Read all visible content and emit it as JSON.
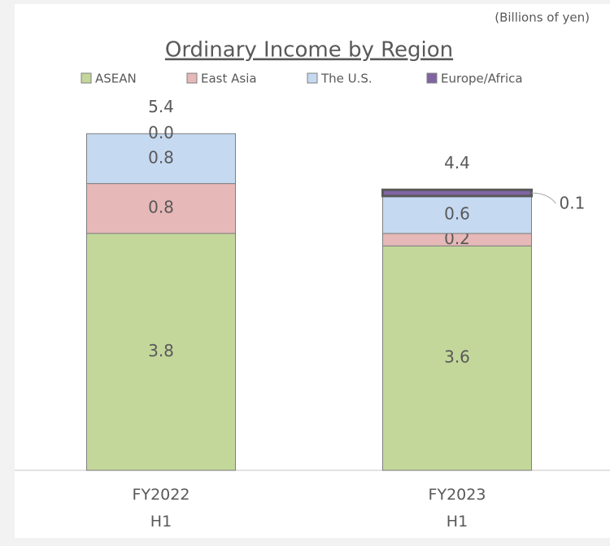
{
  "chart_data": {
    "type": "stacked_bar",
    "title": "Ordinary Income by Region",
    "unit_label": "(Billions of yen)",
    "categories": [
      "FY2022 H1",
      "FY2023 H1"
    ],
    "series": [
      {
        "name": "ASEAN",
        "color": "#c4d79b",
        "values": [
          3.8,
          3.6
        ]
      },
      {
        "name": "East Asia",
        "color": "#e6b8b7",
        "values": [
          0.8,
          0.2
        ]
      },
      {
        "name": "The U.S.",
        "color": "#c5d9f1",
        "values": [
          0.8,
          0.6
        ]
      },
      {
        "name": "Europe/Africa",
        "color": "#8064a2",
        "values": [
          0,
          0.1
        ],
        "value_labels": [
          "0.0",
          "0.1"
        ]
      }
    ],
    "totals": [
      5.4,
      4.4
    ],
    "ylim": [
      0,
      5.9
    ]
  }
}
